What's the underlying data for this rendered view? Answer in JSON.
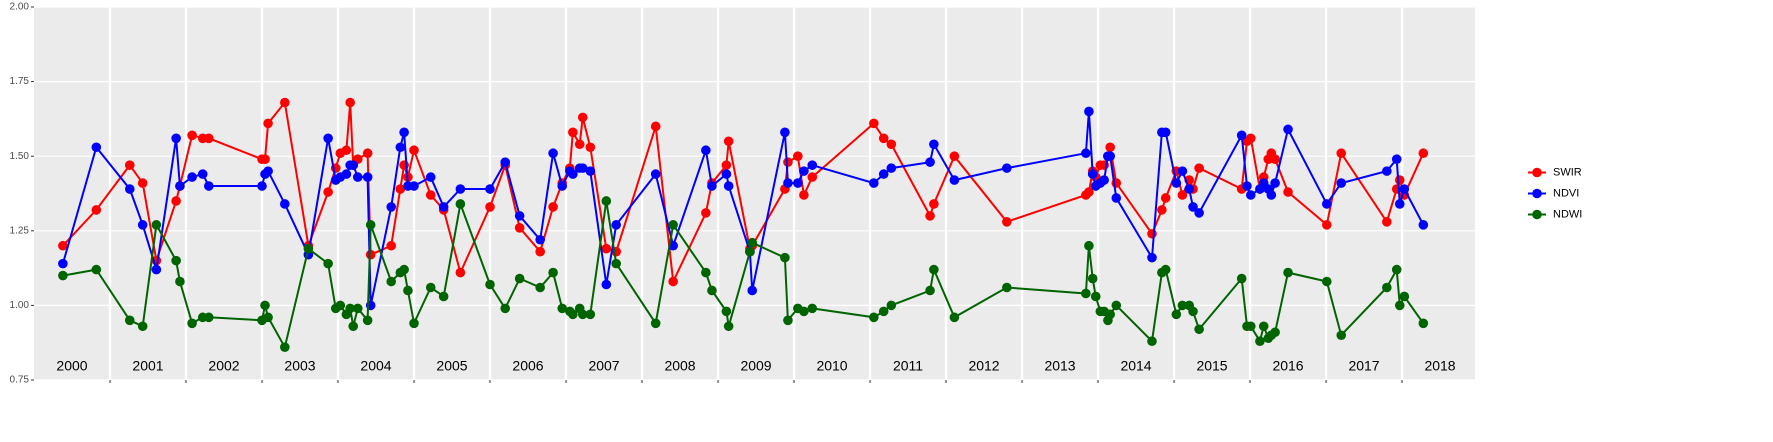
{
  "chart_data": {
    "type": "line",
    "x": [
      2000.38,
      2000.82,
      2001.26,
      2001.43,
      2001.61,
      2001.87,
      2001.92,
      2002.08,
      2002.22,
      2002.3,
      2003.0,
      2003.04,
      2003.08,
      2003.3,
      2003.61,
      2003.87,
      2003.97,
      2004.03,
      2004.11,
      2004.16,
      2004.2,
      2004.26,
      2004.39,
      2004.43,
      2004.7,
      2004.82,
      2004.87,
      2004.92,
      2005.0,
      2005.22,
      2005.39,
      2005.61,
      2006.0,
      2006.2,
      2006.39,
      2006.66,
      2006.83,
      2006.95,
      2007.05,
      2007.09,
      2007.18,
      2007.22,
      2007.32,
      2007.53,
      2007.66,
      2008.18,
      2008.41,
      2008.84,
      2008.92,
      2009.11,
      2009.14,
      2009.42,
      2009.45,
      2009.88,
      2009.92,
      2010.05,
      2010.13,
      2010.24,
      2011.05,
      2011.18,
      2011.28,
      2011.79,
      2011.84,
      2012.11,
      2012.8,
      2013.84,
      2013.88,
      2013.93,
      2013.97,
      2014.03,
      2014.08,
      2014.13,
      2014.16,
      2014.24,
      2014.71,
      2014.84,
      2014.89,
      2015.03,
      2015.11,
      2015.2,
      2015.25,
      2015.33,
      2015.89,
      2015.96,
      2016.01,
      2016.13,
      2016.18,
      2016.24,
      2016.28,
      2016.33,
      2016.5,
      2017.01,
      2017.2,
      2017.8,
      2017.93,
      2017.97,
      2018.03,
      2018.28
    ],
    "series": [
      {
        "name": "SWIR",
        "color": "#ff0000",
        "values": [
          1.2,
          1.32,
          1.47,
          1.41,
          1.15,
          1.35,
          1.4,
          1.57,
          1.56,
          1.56,
          1.49,
          1.49,
          1.61,
          1.68,
          1.2,
          1.38,
          1.46,
          1.51,
          1.52,
          1.68,
          1.47,
          1.49,
          1.51,
          1.17,
          1.2,
          1.39,
          1.47,
          1.43,
          1.52,
          1.37,
          1.32,
          1.11,
          1.33,
          1.47,
          1.26,
          1.18,
          1.33,
          1.41,
          1.46,
          1.58,
          1.54,
          1.63,
          1.53,
          1.19,
          1.18,
          1.6,
          1.08,
          1.31,
          1.41,
          1.47,
          1.55,
          1.19,
          1.2,
          1.39,
          1.48,
          1.5,
          1.37,
          1.43,
          1.61,
          1.56,
          1.54,
          1.3,
          1.34,
          1.5,
          1.28,
          1.37,
          1.38,
          1.45,
          1.43,
          1.47,
          1.47,
          1.5,
          1.53,
          1.41,
          1.24,
          1.32,
          1.36,
          1.45,
          1.37,
          1.42,
          1.39,
          1.46,
          1.39,
          1.55,
          1.56,
          1.39,
          1.43,
          1.49,
          1.51,
          1.49,
          1.38,
          1.27,
          1.51,
          1.28,
          1.39,
          1.42,
          1.37,
          1.51
        ]
      },
      {
        "name": "NDVI",
        "color": "#0000ff",
        "values": [
          1.14,
          1.53,
          1.39,
          1.27,
          1.12,
          1.56,
          1.4,
          1.43,
          1.44,
          1.4,
          1.4,
          1.44,
          1.45,
          1.34,
          1.17,
          1.56,
          1.42,
          1.43,
          1.44,
          1.47,
          1.47,
          1.43,
          1.43,
          1.0,
          1.33,
          1.53,
          1.58,
          1.4,
          1.4,
          1.43,
          1.33,
          1.39,
          1.39,
          1.48,
          1.3,
          1.22,
          1.51,
          1.4,
          1.45,
          1.44,
          1.46,
          1.46,
          1.45,
          1.07,
          1.27,
          1.44,
          1.2,
          1.52,
          1.4,
          1.44,
          1.4,
          1.18,
          1.05,
          1.58,
          1.41,
          1.41,
          1.45,
          1.47,
          1.41,
          1.44,
          1.46,
          1.48,
          1.54,
          1.42,
          1.46,
          1.51,
          1.65,
          1.44,
          1.4,
          1.41,
          1.42,
          1.5,
          1.5,
          1.36,
          1.16,
          1.58,
          1.58,
          1.41,
          1.45,
          1.39,
          1.33,
          1.31,
          1.57,
          1.4,
          1.37,
          1.39,
          1.41,
          1.39,
          1.37,
          1.41,
          1.59,
          1.34,
          1.41,
          1.45,
          1.49,
          1.34,
          1.39,
          1.27
        ]
      },
      {
        "name": "NDWI",
        "color": "#006400",
        "values": [
          1.1,
          1.12,
          0.95,
          0.93,
          1.27,
          1.15,
          1.08,
          0.94,
          0.96,
          0.96,
          0.95,
          1.0,
          0.96,
          0.86,
          1.19,
          1.14,
          0.99,
          1.0,
          0.97,
          0.99,
          0.93,
          0.99,
          0.95,
          1.27,
          1.08,
          1.11,
          1.12,
          1.05,
          0.94,
          1.06,
          1.03,
          1.34,
          1.07,
          0.99,
          1.09,
          1.06,
          1.11,
          0.99,
          0.98,
          0.97,
          0.99,
          0.97,
          0.97,
          1.35,
          1.14,
          0.94,
          1.27,
          1.11,
          1.05,
          0.98,
          0.93,
          1.18,
          1.21,
          1.16,
          0.95,
          0.99,
          0.98,
          0.99,
          0.96,
          0.98,
          1.0,
          1.05,
          1.12,
          0.96,
          1.06,
          1.04,
          1.2,
          1.09,
          1.03,
          0.98,
          0.98,
          0.95,
          0.97,
          1.0,
          0.88,
          1.11,
          1.12,
          0.97,
          1.0,
          1.0,
          0.98,
          0.92,
          1.09,
          0.93,
          0.93,
          0.88,
          0.93,
          0.89,
          0.9,
          0.91,
          1.11,
          1.08,
          0.9,
          1.06,
          1.12,
          1.0,
          1.03,
          0.94
        ]
      }
    ],
    "xlim": [
      2000,
      2018.96
    ],
    "xticks": [
      2001,
      2002,
      2003,
      2004,
      2005,
      2006,
      2007,
      2008,
      2009,
      2010,
      2011,
      2012,
      2013,
      2014,
      2015,
      2016,
      2017,
      2018
    ],
    "year_labels": [
      {
        "value": 2000.5,
        "label": "2000"
      },
      {
        "value": 2001.5,
        "label": "2001"
      },
      {
        "value": 2002.5,
        "label": "2002"
      },
      {
        "value": 2003.5,
        "label": "2003"
      },
      {
        "value": 2004.5,
        "label": "2004"
      },
      {
        "value": 2005.5,
        "label": "2005"
      },
      {
        "value": 2006.5,
        "label": "2006"
      },
      {
        "value": 2007.5,
        "label": "2007"
      },
      {
        "value": 2008.5,
        "label": "2008"
      },
      {
        "value": 2009.5,
        "label": "2009"
      },
      {
        "value": 2010.5,
        "label": "2010"
      },
      {
        "value": 2011.5,
        "label": "2011"
      },
      {
        "value": 2012.5,
        "label": "2012"
      },
      {
        "value": 2013.5,
        "label": "2013"
      },
      {
        "value": 2014.5,
        "label": "2014"
      },
      {
        "value": 2015.5,
        "label": "2015"
      },
      {
        "value": 2016.5,
        "label": "2016"
      },
      {
        "value": 2017.5,
        "label": "2017"
      },
      {
        "value": 2018.5,
        "label": "2018"
      }
    ],
    "ylim": [
      0.75,
      2.0
    ],
    "yticks": [
      {
        "value": 0.75,
        "label": "0.75"
      },
      {
        "value": 1.0,
        "label": "1.00"
      },
      {
        "value": 1.25,
        "label": "1.25"
      },
      {
        "value": 1.5,
        "label": "1.50"
      },
      {
        "value": 1.75,
        "label": "1.75"
      },
      {
        "value": 2.0,
        "label": "2.00"
      }
    ],
    "grid": true,
    "legend": "right"
  }
}
